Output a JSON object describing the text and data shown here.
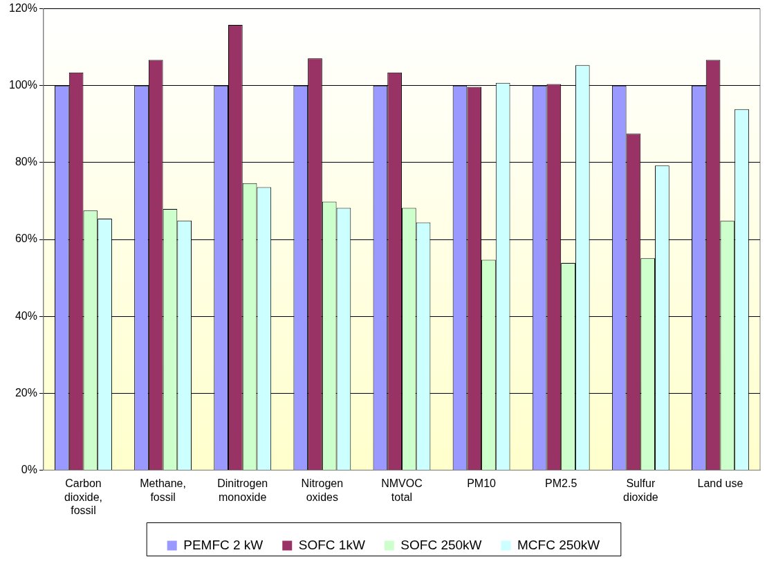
{
  "chart_data": {
    "type": "bar",
    "categories": [
      "Carbon\ndioxide,\nfossil",
      "Methane,\nfossil",
      "Dinitrogen\nmonoxide",
      "Nitrogen\noxides",
      "NMVOC\ntotal",
      "PM10",
      "PM2.5",
      "Sulfur\ndioxide",
      "Land use"
    ],
    "series": [
      {
        "name": "PEMFC 2 kW",
        "color": "#9999ff",
        "values": [
          100,
          100,
          100,
          100,
          100,
          100,
          100,
          100,
          100
        ]
      },
      {
        "name": "SOFC 1kW",
        "color": "#993366",
        "values": [
          103.4,
          106.7,
          115.8,
          107.1,
          103.4,
          99.7,
          100.4,
          87.5,
          106.7
        ]
      },
      {
        "name": "SOFC 250kW",
        "color": "#ccffcc",
        "values": [
          67.5,
          67.9,
          74.6,
          69.8,
          68.2,
          54.7,
          53.9,
          55.1,
          64.8
        ]
      },
      {
        "name": "MCFC 250kW",
        "color": "#ccffff",
        "values": [
          65.4,
          64.9,
          73.6,
          68.2,
          64.4,
          100.7,
          105.3,
          79.2,
          93.9
        ]
      }
    ],
    "ylim": [
      0,
      120
    ],
    "yticks": [
      {
        "value": 0,
        "label": "0%"
      },
      {
        "value": 20,
        "label": "20%"
      },
      {
        "value": 40,
        "label": "40%"
      },
      {
        "value": 60,
        "label": "60%"
      },
      {
        "value": 80,
        "label": "80%"
      },
      {
        "value": 100,
        "label": "100%"
      },
      {
        "value": 120,
        "label": "120%"
      }
    ],
    "grid": "y",
    "legend": "bottom"
  }
}
